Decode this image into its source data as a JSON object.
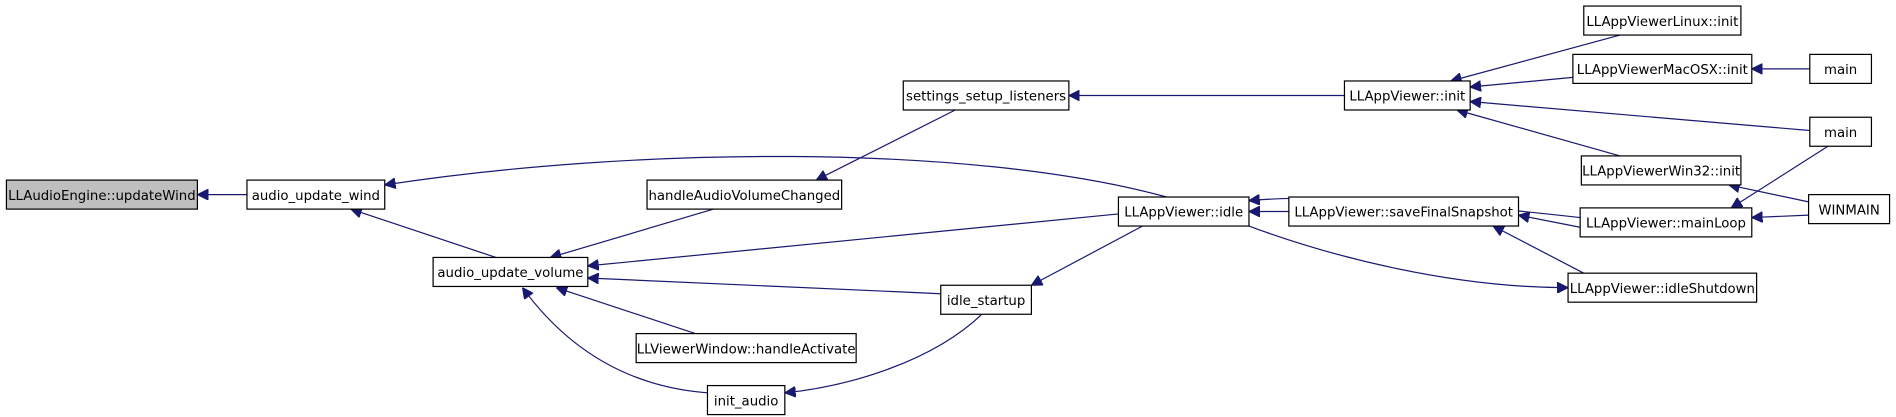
{
  "nodes": [
    {
      "label": "LLAudioEngine::updateWind"
    },
    {
      "label": "audio_update_wind"
    },
    {
      "label": "audio_update_volume"
    },
    {
      "label": "handleAudioVolumeChanged"
    },
    {
      "label": "settings_setup_listeners"
    },
    {
      "label": "LLViewerWindow::handleActivate"
    },
    {
      "label": "init_audio"
    },
    {
      "label": "idle_startup"
    },
    {
      "label": "LLAppViewer::idle"
    },
    {
      "label": "LLAppViewer::init"
    },
    {
      "label": "LLAppViewer::saveFinalSnapshot"
    },
    {
      "label": "LLAppViewer::idleShutdown"
    },
    {
      "label": "LLAppViewer::mainLoop"
    },
    {
      "label": "LLAppViewerLinux::init"
    },
    {
      "label": "LLAppViewerMacOSX::init"
    },
    {
      "label": "LLAppViewerWin32::init"
    },
    {
      "label": "main"
    },
    {
      "label": "main"
    },
    {
      "label": "WINMAIN"
    }
  ]
}
